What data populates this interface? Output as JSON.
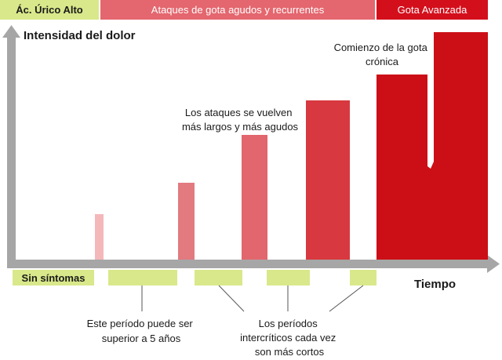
{
  "header": {
    "stage1": "Ác. Úrico Alto",
    "stage2": "Ataques de gota agudos y recurrentes",
    "stage3": "Gota Avanzada"
  },
  "y_axis_label": "Intensidad del dolor",
  "x_axis_label": "Tiempo",
  "phases": {
    "no_symptoms": "Sin síntomas"
  },
  "annotations": {
    "longer_attacks": [
      "Los ataques se vuelven",
      "más largos y más agudos"
    ],
    "chronic_onset": [
      "Comienzo de la gota",
      "crónica"
    ],
    "period_note": [
      "Este período puede ser",
      "superior a 5 años"
    ],
    "intercritical_note": [
      "Los períodos",
      "intercríticos cada vez",
      "son más cortos"
    ]
  },
  "colors": {
    "stage1": "#d9e88a",
    "stage2": "#e4666e",
    "stage3": "#d40f1c",
    "axis": "#a6a6a6",
    "phase_box": "#d9e88a",
    "bar_1": "#f4b8bb",
    "bar_2": "#e27a80",
    "bar_3": "#e2666d",
    "bar_4": "#d8383f",
    "bar_5": "#cc0f16"
  }
}
